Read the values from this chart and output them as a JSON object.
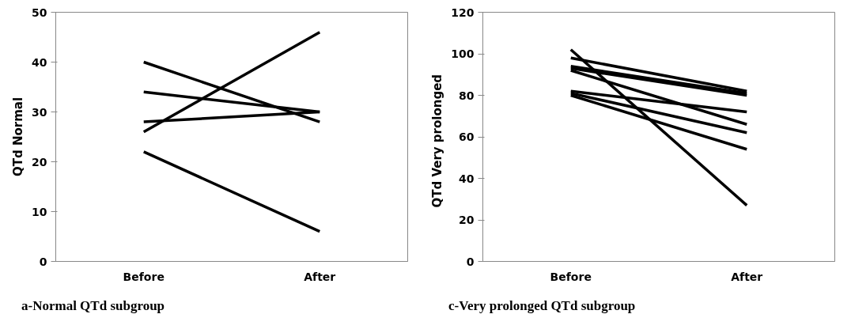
{
  "chart_data": [
    {
      "type": "line",
      "ylabel": "QTd Normal",
      "categories": [
        "Before",
        "After"
      ],
      "ylim": [
        0,
        50
      ],
      "yticks": [
        0,
        10,
        20,
        30,
        40,
        50
      ],
      "grid": false,
      "marker": "none",
      "line_style": "solid",
      "annotations": [
        "a-Normal QTd subgroup"
      ],
      "series": [
        {
          "color": "#000000",
          "values": [
            40,
            28
          ]
        },
        {
          "color": "#000000",
          "values": [
            34,
            30
          ]
        },
        {
          "color": "#000000",
          "values": [
            28,
            30
          ]
        },
        {
          "color": "#000000",
          "values": [
            26,
            46
          ]
        },
        {
          "color": "#000000",
          "values": [
            22,
            6
          ]
        }
      ]
    },
    {
      "type": "line",
      "ylabel": "QTd   Very prolonged",
      "categories": [
        "Before",
        "After"
      ],
      "ylim": [
        0,
        120
      ],
      "yticks": [
        0,
        20,
        40,
        60,
        80,
        100,
        120
      ],
      "grid": false,
      "marker": "none",
      "line_style": "solid",
      "annotations": [
        "c-Very prolonged QTd subgroup"
      ],
      "series": [
        {
          "color": "#000000",
          "values": [
            102,
            27
          ]
        },
        {
          "color": "#000000",
          "values": [
            98,
            82
          ]
        },
        {
          "color": "#000000",
          "values": [
            94,
            81
          ]
        },
        {
          "color": "#000000",
          "values": [
            93,
            80
          ]
        },
        {
          "color": "#000000",
          "values": [
            92,
            66
          ]
        },
        {
          "color": "#000000",
          "values": [
            82,
            72
          ]
        },
        {
          "color": "#000000",
          "values": [
            81,
            62
          ]
        },
        {
          "color": "#000000",
          "values": [
            80,
            54
          ]
        }
      ]
    }
  ]
}
